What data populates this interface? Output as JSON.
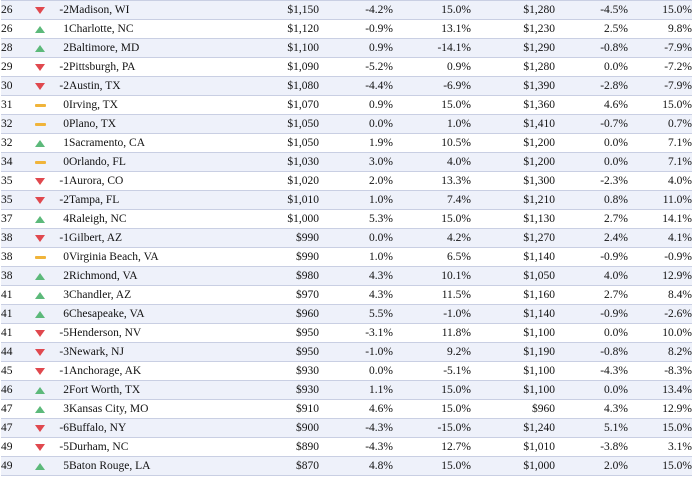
{
  "colors": {
    "down": "#e0484e",
    "up": "#5cb97a",
    "same": "#f0b43a",
    "row_alt": "#eef1fa",
    "border": "#c9cfe3"
  },
  "rows": [
    {
      "rank": "26",
      "trend": "down",
      "change": "-2",
      "city": "Madison, WI",
      "rent1": "$1,150",
      "m1": "-4.2%",
      "y1": "15.0%",
      "rent2": "$1,280",
      "m2": "-4.5%",
      "y2": "15.0%"
    },
    {
      "rank": "26",
      "trend": "up",
      "change": "1",
      "city": "Charlotte, NC",
      "rent1": "$1,120",
      "m1": "-0.9%",
      "y1": "13.1%",
      "rent2": "$1,230",
      "m2": "2.5%",
      "y2": "9.8%"
    },
    {
      "rank": "28",
      "trend": "up",
      "change": "2",
      "city": "Baltimore, MD",
      "rent1": "$1,100",
      "m1": "0.9%",
      "y1": "-14.1%",
      "rent2": "$1,290",
      "m2": "-0.8%",
      "y2": "-7.9%"
    },
    {
      "rank": "29",
      "trend": "down",
      "change": "-2",
      "city": "Pittsburgh, PA",
      "rent1": "$1,090",
      "m1": "-5.2%",
      "y1": "0.9%",
      "rent2": "$1,280",
      "m2": "0.0%",
      "y2": "-7.2%"
    },
    {
      "rank": "30",
      "trend": "down",
      "change": "-2",
      "city": "Austin, TX",
      "rent1": "$1,080",
      "m1": "-4.4%",
      "y1": "-6.9%",
      "rent2": "$1,390",
      "m2": "-2.8%",
      "y2": "-7.9%"
    },
    {
      "rank": "31",
      "trend": "same",
      "change": "0",
      "city": "Irving, TX",
      "rent1": "$1,070",
      "m1": "0.9%",
      "y1": "15.0%",
      "rent2": "$1,360",
      "m2": "4.6%",
      "y2": "15.0%"
    },
    {
      "rank": "32",
      "trend": "same",
      "change": "0",
      "city": "Plano, TX",
      "rent1": "$1,050",
      "m1": "0.0%",
      "y1": "1.0%",
      "rent2": "$1,410",
      "m2": "-0.7%",
      "y2": "0.7%"
    },
    {
      "rank": "32",
      "trend": "up",
      "change": "1",
      "city": "Sacramento, CA",
      "rent1": "$1,050",
      "m1": "1.9%",
      "y1": "10.5%",
      "rent2": "$1,200",
      "m2": "0.0%",
      "y2": "7.1%"
    },
    {
      "rank": "34",
      "trend": "same",
      "change": "0",
      "city": "Orlando, FL",
      "rent1": "$1,030",
      "m1": "3.0%",
      "y1": "4.0%",
      "rent2": "$1,200",
      "m2": "0.0%",
      "y2": "7.1%"
    },
    {
      "rank": "35",
      "trend": "down",
      "change": "-1",
      "city": "Aurora, CO",
      "rent1": "$1,020",
      "m1": "2.0%",
      "y1": "13.3%",
      "rent2": "$1,300",
      "m2": "-2.3%",
      "y2": "4.0%"
    },
    {
      "rank": "35",
      "trend": "down",
      "change": "-2",
      "city": "Tampa, FL",
      "rent1": "$1,010",
      "m1": "1.0%",
      "y1": "7.4%",
      "rent2": "$1,210",
      "m2": "0.8%",
      "y2": "11.0%"
    },
    {
      "rank": "37",
      "trend": "up",
      "change": "4",
      "city": "Raleigh, NC",
      "rent1": "$1,000",
      "m1": "5.3%",
      "y1": "15.0%",
      "rent2": "$1,130",
      "m2": "2.7%",
      "y2": "14.1%"
    },
    {
      "rank": "38",
      "trend": "down",
      "change": "-1",
      "city": "Gilbert, AZ",
      "rent1": "$990",
      "m1": "0.0%",
      "y1": "4.2%",
      "rent2": "$1,270",
      "m2": "2.4%",
      "y2": "4.1%"
    },
    {
      "rank": "38",
      "trend": "same",
      "change": "0",
      "city": "Virginia Beach, VA",
      "rent1": "$990",
      "m1": "1.0%",
      "y1": "6.5%",
      "rent2": "$1,140",
      "m2": "-0.9%",
      "y2": "-0.9%"
    },
    {
      "rank": "38",
      "trend": "up",
      "change": "2",
      "city": "Richmond, VA",
      "rent1": "$980",
      "m1": "4.3%",
      "y1": "10.1%",
      "rent2": "$1,050",
      "m2": "4.0%",
      "y2": "12.9%"
    },
    {
      "rank": "41",
      "trend": "up",
      "change": "3",
      "city": "Chandler, AZ",
      "rent1": "$970",
      "m1": "4.3%",
      "y1": "11.5%",
      "rent2": "$1,160",
      "m2": "2.7%",
      "y2": "8.4%"
    },
    {
      "rank": "41",
      "trend": "up",
      "change": "6",
      "city": "Chesapeake, VA",
      "rent1": "$960",
      "m1": "5.5%",
      "y1": "-1.0%",
      "rent2": "$1,140",
      "m2": "-0.9%",
      "y2": "-2.6%"
    },
    {
      "rank": "41",
      "trend": "down",
      "change": "-5",
      "city": "Henderson, NV",
      "rent1": "$950",
      "m1": "-3.1%",
      "y1": "11.8%",
      "rent2": "$1,100",
      "m2": "0.0%",
      "y2": "10.0%"
    },
    {
      "rank": "44",
      "trend": "down",
      "change": "-3",
      "city": "Newark, NJ",
      "rent1": "$950",
      "m1": "-1.0%",
      "y1": "9.2%",
      "rent2": "$1,190",
      "m2": "-0.8%",
      "y2": "8.2%"
    },
    {
      "rank": "45",
      "trend": "down",
      "change": "-1",
      "city": "Anchorage, AK",
      "rent1": "$930",
      "m1": "0.0%",
      "y1": "-5.1%",
      "rent2": "$1,100",
      "m2": "-4.3%",
      "y2": "-8.3%"
    },
    {
      "rank": "46",
      "trend": "up",
      "change": "2",
      "city": "Fort Worth, TX",
      "rent1": "$930",
      "m1": "1.1%",
      "y1": "15.0%",
      "rent2": "$1,100",
      "m2": "0.0%",
      "y2": "13.4%"
    },
    {
      "rank": "47",
      "trend": "up",
      "change": "3",
      "city": "Kansas City, MO",
      "rent1": "$910",
      "m1": "4.6%",
      "y1": "15.0%",
      "rent2": "$960",
      "m2": "4.3%",
      "y2": "12.9%"
    },
    {
      "rank": "47",
      "trend": "down",
      "change": "-6",
      "city": "Buffalo, NY",
      "rent1": "$900",
      "m1": "-4.3%",
      "y1": "-15.0%",
      "rent2": "$1,240",
      "m2": "5.1%",
      "y2": "15.0%"
    },
    {
      "rank": "49",
      "trend": "down",
      "change": "-5",
      "city": "Durham, NC",
      "rent1": "$890",
      "m1": "-4.3%",
      "y1": "12.7%",
      "rent2": "$1,010",
      "m2": "-3.8%",
      "y2": "3.1%"
    },
    {
      "rank": "49",
      "trend": "up",
      "change": "5",
      "city": "Baton Rouge, LA",
      "rent1": "$870",
      "m1": "4.8%",
      "y1": "15.0%",
      "rent2": "$1,000",
      "m2": "2.0%",
      "y2": "15.0%"
    }
  ]
}
